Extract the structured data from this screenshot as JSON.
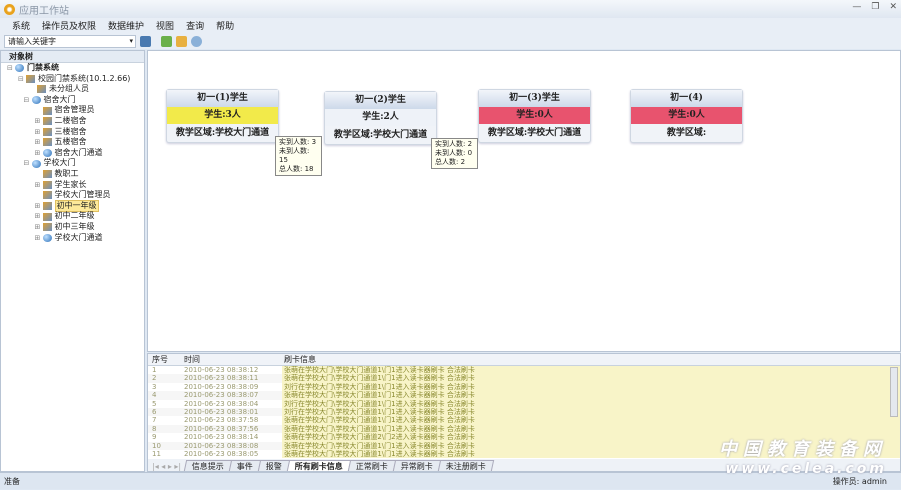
{
  "window": {
    "title": "应用工作站",
    "controls": [
      "—",
      "❐",
      "✕"
    ]
  },
  "menu": [
    "系统",
    "操作员及权限",
    "数据维护",
    "视图",
    "查询",
    "帮助"
  ],
  "toolbar": {
    "search_placeholder": "请输入关键字"
  },
  "tree": {
    "header": "对象树",
    "items": [
      {
        "label": "门禁系统",
        "level": 0,
        "exp": "⊟",
        "icon": "logo"
      },
      {
        "label": "校园门禁系统(10.1.2.66)",
        "level": 1,
        "exp": "⊟",
        "icon": "server"
      },
      {
        "label": "未分组人员",
        "level": 2,
        "exp": "",
        "icon": "group"
      },
      {
        "label": "宿舍大门",
        "level": 1.5,
        "exp": "⊟",
        "icon": "globe"
      },
      {
        "label": "宿舍管理员",
        "level": 2.5,
        "exp": "",
        "icon": "group"
      },
      {
        "label": "二楼宿舍",
        "level": 2.5,
        "exp": "⊞",
        "icon": "group"
      },
      {
        "label": "三楼宿舍",
        "level": 2.5,
        "exp": "⊞",
        "icon": "group"
      },
      {
        "label": "五楼宿舍",
        "level": 2.5,
        "exp": "⊞",
        "icon": "group"
      },
      {
        "label": "宿舍大门通道",
        "level": 2.5,
        "exp": "⊞",
        "icon": "globe"
      },
      {
        "label": "学校大门",
        "level": 1.5,
        "exp": "⊟",
        "icon": "globe"
      },
      {
        "label": "教职工",
        "level": 2.5,
        "exp": "",
        "icon": "group"
      },
      {
        "label": "学生家长",
        "level": 2.5,
        "exp": "⊞",
        "icon": "group"
      },
      {
        "label": "学校大门管理员",
        "level": 2.5,
        "exp": "",
        "icon": "group"
      },
      {
        "label": "初中一年级",
        "level": 2.5,
        "exp": "⊞",
        "icon": "group",
        "selected": true
      },
      {
        "label": "初中二年级",
        "level": 2.5,
        "exp": "⊞",
        "icon": "group"
      },
      {
        "label": "初中三年级",
        "level": 2.5,
        "exp": "⊞",
        "icon": "group"
      },
      {
        "label": "学校大门通道",
        "level": 2.5,
        "exp": "⊞",
        "icon": "globe"
      }
    ]
  },
  "cards": [
    {
      "title": "初一(1)学生",
      "students": "学生:3人",
      "area": "教学区域:学校大门通道",
      "status_color": "#f2ea4a"
    },
    {
      "title": "初一(2)学生",
      "students": "学生:2人",
      "area": "教学区域:学校大门通道",
      "status_color": "#eef2f8"
    },
    {
      "title": "初一(3)学生",
      "students": "学生:0人",
      "area": "教学区域:学校大门通道",
      "status_color": "#e8536e"
    },
    {
      "title": "初一(4)",
      "students": "学生:0人",
      "area": "教学区域:",
      "status_color": "#e8536e"
    }
  ],
  "tooltips": [
    {
      "lines": [
        "实到人数: 3",
        "未到人数: 15",
        "总人数: 18"
      ]
    },
    {
      "lines": [
        "实到人数: 2",
        "未到人数: 0",
        "总人数: 2"
      ]
    }
  ],
  "log": {
    "columns": [
      "序号",
      "时间",
      "刷卡信息"
    ],
    "rows": [
      [
        "1",
        "2010-06-23 08:38:12",
        "张萌在学校大门\\学校大门通道1\\门1进入读卡器刷卡 合法刷卡"
      ],
      [
        "2",
        "2010-06-23 08:38:11",
        "张萌在学校大门\\学校大门通道1\\门1进入读卡器刷卡 合法刷卡"
      ],
      [
        "3",
        "2010-06-23 08:38:09",
        "刘行在学校大门\\学校大门通道1\\门1进入读卡器刷卡 合法刷卡"
      ],
      [
        "4",
        "2010-06-23 08:38:07",
        "张萌在学校大门\\学校大门通道1\\门1进入读卡器刷卡 合法刷卡"
      ],
      [
        "5",
        "2010-06-23 08:38:04",
        "刘行在学校大门\\学校大门通道1\\门1进入读卡器刷卡 合法刷卡"
      ],
      [
        "6",
        "2010-06-23 08:38:01",
        "刘行在学校大门\\学校大门通道1\\门1进入读卡器刷卡 合法刷卡"
      ],
      [
        "7",
        "2010-06-23 08:37:58",
        "张萌在学校大门\\学校大门通道1\\门1进入读卡器刷卡 合法刷卡"
      ],
      [
        "8",
        "2010-06-23 08:37:56",
        "张萌在学校大门\\学校大门通道1\\门1进入读卡器刷卡 合法刷卡"
      ],
      [
        "9",
        "2010-06-23 08:38:14",
        "张萌在学校大门\\学校大门通道2\\门2进入读卡器刷卡 合法刷卡"
      ],
      [
        "10",
        "2010-06-23 08:38:08",
        "张萌在学校大门\\学校大门通道1\\门1进入读卡器刷卡 合法刷卡"
      ],
      [
        "11",
        "2010-06-23 08:38:05",
        "张萌在学校大门\\学校大门通道1\\门1进入读卡器刷卡 合法刷卡"
      ]
    ]
  },
  "tabs": {
    "items": [
      "信息提示",
      "事件",
      "报警",
      "所有刷卡信息",
      "正常刷卡",
      "异常刷卡",
      "未注册刷卡"
    ],
    "active": 3
  },
  "status": {
    "left": "准备",
    "operator": "操作员: admin"
  },
  "watermark": {
    "line1": "中国教育装备网",
    "line2": "www.celea.com"
  }
}
